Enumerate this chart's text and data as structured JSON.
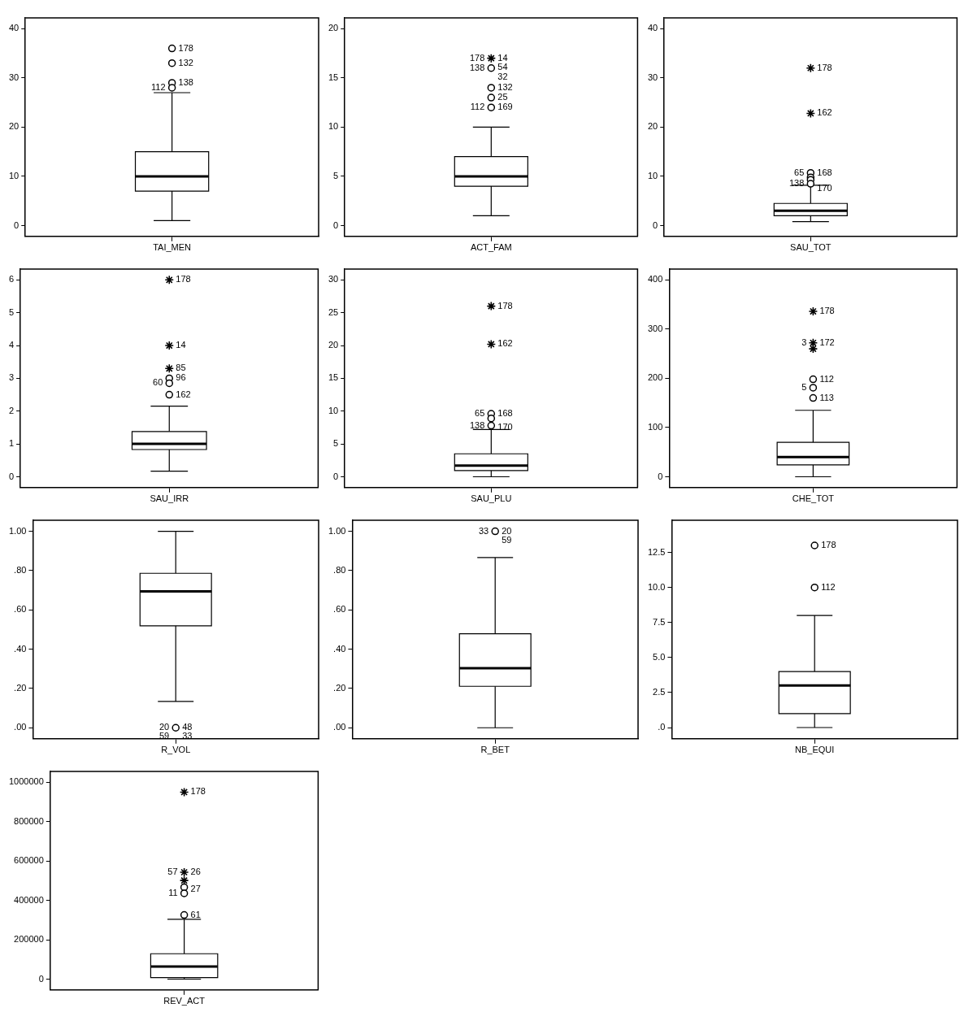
{
  "chart_data": [
    {
      "type": "box",
      "categories": [
        "TAI_MEN"
      ],
      "ylim": [
        -2.2,
        42.2
      ],
      "yticks": [
        0,
        10,
        20,
        30,
        40
      ],
      "boxes": [
        {
          "low": 1,
          "q1": 7,
          "median": 10,
          "q3": 15,
          "high": 27
        }
      ],
      "series": [
        {
          "type": "scatter",
          "marker": "circle",
          "color": "#000000",
          "x": [
            "TAI_MEN",
            "TAI_MEN",
            "TAI_MEN",
            "TAI_MEN"
          ],
          "values": [
            36,
            33,
            29,
            28
          ]
        }
      ],
      "annotations": [
        {
          "text": "178",
          "x": "TAI_MEN",
          "y": 36
        },
        {
          "text": "132",
          "x": "TAI_MEN",
          "y": 33
        },
        {
          "text": "138",
          "x": "TAI_MEN",
          "y": 29
        },
        {
          "text": "112",
          "x": "TAI_MEN",
          "y": 28
        }
      ]
    },
    {
      "type": "box",
      "categories": [
        "ACT_FAM"
      ],
      "ylim": [
        -1.1,
        21.1
      ],
      "yticks": [
        0,
        5,
        10,
        15,
        20
      ],
      "boxes": [
        {
          "low": 1,
          "q1": 4,
          "median": 5,
          "q3": 7,
          "high": 10
        }
      ],
      "series": [
        {
          "type": "scatter",
          "marker": "circle",
          "color": "#000000",
          "x": [
            "ACT_FAM",
            "ACT_FAM",
            "ACT_FAM",
            "ACT_FAM"
          ],
          "values": [
            16,
            14,
            13,
            12
          ]
        },
        {
          "type": "scatter",
          "marker": "cross",
          "color": "#000000",
          "x": [
            "ACT_FAM"
          ],
          "values": [
            17
          ]
        }
      ],
      "annotations": [
        {
          "text": "14",
          "x": "ACT_FAM",
          "y": 17
        },
        {
          "text": "178",
          "x": "ACT_FAM",
          "y": 17
        },
        {
          "text": "54",
          "x": "ACT_FAM",
          "y": 17
        },
        {
          "text": "138",
          "x": "ACT_FAM",
          "y": 16
        },
        {
          "text": "32",
          "x": "ACT_FAM",
          "y": 16
        },
        {
          "text": "132",
          "x": "ACT_FAM",
          "y": 14
        },
        {
          "text": "25",
          "x": "ACT_FAM",
          "y": 13
        },
        {
          "text": "169",
          "x": "ACT_FAM",
          "y": 12
        },
        {
          "text": "112",
          "x": "ACT_FAM",
          "y": 12
        }
      ]
    },
    {
      "type": "box",
      "categories": [
        "SAU_TOT"
      ],
      "ylim": [
        -2.2,
        42.2
      ],
      "yticks": [
        0,
        10,
        20,
        30,
        40
      ],
      "boxes": [
        {
          "low": 0.8,
          "q1": 2,
          "median": 3,
          "q3": 4.5,
          "high": 8.2
        }
      ],
      "series": [
        {
          "type": "scatter",
          "marker": "circle",
          "color": "#000000",
          "x": [
            "SAU_TOT",
            "SAU_TOT",
            "SAU_TOT",
            "SAU_TOT"
          ],
          "values": [
            10.7,
            9.8,
            9.3,
            8.5
          ]
        },
        {
          "type": "scatter",
          "marker": "cross",
          "color": "#000000",
          "x": [
            "SAU_TOT",
            "SAU_TOT"
          ],
          "values": [
            32,
            22.8
          ]
        }
      ],
      "annotations": [
        {
          "text": "178",
          "x": "SAU_TOT",
          "y": 32
        },
        {
          "text": "162",
          "x": "SAU_TOT",
          "y": 22.8
        },
        {
          "text": "168",
          "x": "SAU_TOT",
          "y": 10.7
        },
        {
          "text": "65",
          "x": "SAU_TOT",
          "y": 10.7
        },
        {
          "text": "170",
          "x": "SAU_TOT",
          "y": 9.3
        },
        {
          "text": "138",
          "x": "SAU_TOT",
          "y": 8.5
        }
      ]
    },
    {
      "type": "box",
      "categories": [
        "SAU_IRR"
      ],
      "ylim": [
        -0.33,
        6.33
      ],
      "yticks": [
        0,
        1,
        2,
        3,
        4,
        5,
        6
      ],
      "boxes": [
        {
          "low": 0.17,
          "q1": 0.83,
          "median": 1,
          "q3": 1.38,
          "high": 2.15
        }
      ],
      "series": [
        {
          "type": "scatter",
          "marker": "circle",
          "color": "#000000",
          "x": [
            "SAU_IRR",
            "SAU_IRR",
            "SAU_IRR"
          ],
          "values": [
            3,
            2.85,
            2.5
          ]
        },
        {
          "type": "scatter",
          "marker": "cross",
          "color": "#000000",
          "x": [
            "SAU_IRR",
            "SAU_IRR",
            "SAU_IRR"
          ],
          "values": [
            6,
            4,
            3.3
          ]
        }
      ],
      "annotations": [
        {
          "text": "178",
          "x": "SAU_IRR",
          "y": 6
        },
        {
          "text": "14",
          "x": "SAU_IRR",
          "y": 4
        },
        {
          "text": "85",
          "x": "SAU_IRR",
          "y": 3.3
        },
        {
          "text": "96",
          "x": "SAU_IRR",
          "y": 3
        },
        {
          "text": "60",
          "x": "SAU_IRR",
          "y": 2.85
        },
        {
          "text": "162",
          "x": "SAU_IRR",
          "y": 2.5
        }
      ]
    },
    {
      "type": "box",
      "categories": [
        "SAU_PLU"
      ],
      "ylim": [
        -1.65,
        31.65
      ],
      "yticks": [
        0,
        5,
        10,
        15,
        20,
        25,
        30
      ],
      "boxes": [
        {
          "low": 0,
          "q1": 0.95,
          "median": 1.7,
          "q3": 3.5,
          "high": 7.2
        }
      ],
      "series": [
        {
          "type": "scatter",
          "marker": "circle",
          "color": "#000000",
          "x": [
            "SAU_PLU",
            "SAU_PLU",
            "SAU_PLU"
          ],
          "values": [
            9.6,
            8.9,
            7.8
          ]
        },
        {
          "type": "scatter",
          "marker": "cross",
          "color": "#000000",
          "x": [
            "SAU_PLU",
            "SAU_PLU"
          ],
          "values": [
            26,
            20.2
          ]
        }
      ],
      "annotations": [
        {
          "text": "178",
          "x": "SAU_PLU",
          "y": 26
        },
        {
          "text": "162",
          "x": "SAU_PLU",
          "y": 20.2
        },
        {
          "text": "168",
          "x": "SAU_PLU",
          "y": 9.6
        },
        {
          "text": "65",
          "x": "SAU_PLU",
          "y": 9.6
        },
        {
          "text": "170",
          "x": "SAU_PLU",
          "y": 8.9
        },
        {
          "text": "138",
          "x": "SAU_PLU",
          "y": 7.8
        }
      ]
    },
    {
      "type": "box",
      "categories": [
        "CHE_TOT"
      ],
      "ylim": [
        -22,
        422
      ],
      "yticks": [
        0,
        100,
        200,
        300,
        400
      ],
      "boxes": [
        {
          "low": 0,
          "q1": 24,
          "median": 40,
          "q3": 70,
          "high": 135
        }
      ],
      "series": [
        {
          "type": "scatter",
          "marker": "circle",
          "color": "#000000",
          "x": [
            "CHE_TOT",
            "CHE_TOT",
            "CHE_TOT"
          ],
          "values": [
            198,
            181,
            160
          ]
        },
        {
          "type": "scatter",
          "marker": "cross",
          "color": "#000000",
          "x": [
            "CHE_TOT",
            "CHE_TOT",
            "CHE_TOT"
          ],
          "values": [
            336,
            272,
            260
          ]
        }
      ],
      "annotations": [
        {
          "text": "178",
          "x": "CHE_TOT",
          "y": 336
        },
        {
          "text": "172",
          "x": "CHE_TOT",
          "y": 272
        },
        {
          "text": "3",
          "x": "CHE_TOT",
          "y": 272
        },
        {
          "text": "112",
          "x": "CHE_TOT",
          "y": 198
        },
        {
          "text": "5",
          "x": "CHE_TOT",
          "y": 181
        },
        {
          "text": "113",
          "x": "CHE_TOT",
          "y": 160
        }
      ]
    },
    {
      "type": "box",
      "categories": [
        "R_VOL"
      ],
      "ylim": [
        -0.056,
        1.056
      ],
      "yticks": [
        {
          "value": 0,
          "label": ".00"
        },
        {
          "value": 0.2,
          "label": ".20"
        },
        {
          "value": 0.4,
          "label": ".40"
        },
        {
          "value": 0.6,
          "label": ".60"
        },
        {
          "value": 0.8,
          "label": ".80"
        },
        {
          "value": 1,
          "label": "1.00"
        }
      ],
      "boxes": [
        {
          "low": 0.134,
          "q1": 0.519,
          "median": 0.694,
          "q3": 0.786,
          "high": 1
        }
      ],
      "series": [
        {
          "type": "scatter",
          "marker": "circle",
          "color": "#000000",
          "x": [
            "R_VOL"
          ],
          "values": [
            0
          ]
        }
      ],
      "annotations": [
        {
          "text": "48",
          "x": "R_VOL",
          "y": 0
        },
        {
          "text": "20",
          "x": "R_VOL",
          "y": 0
        },
        {
          "text": "33",
          "x": "R_VOL",
          "y": 0
        },
        {
          "text": "59",
          "x": "R_VOL",
          "y": 0
        }
      ]
    },
    {
      "type": "box",
      "categories": [
        "R_BET"
      ],
      "ylim": [
        -0.056,
        1.056
      ],
      "yticks": [
        {
          "value": 0,
          "label": ".00"
        },
        {
          "value": 0.2,
          "label": ".20"
        },
        {
          "value": 0.4,
          "label": ".40"
        },
        {
          "value": 0.6,
          "label": ".60"
        },
        {
          "value": 0.8,
          "label": ".80"
        },
        {
          "value": 1,
          "label": "1.00"
        }
      ],
      "boxes": [
        {
          "low": 0,
          "q1": 0.211,
          "median": 0.303,
          "q3": 0.478,
          "high": 0.866
        }
      ],
      "series": [
        {
          "type": "scatter",
          "marker": "circle",
          "color": "#000000",
          "x": [
            "R_BET"
          ],
          "values": [
            1
          ]
        }
      ],
      "annotations": [
        {
          "text": "20",
          "x": "R_BET",
          "y": 1
        },
        {
          "text": "33",
          "x": "R_BET",
          "y": 1
        },
        {
          "text": "59",
          "x": "R_BET",
          "y": 1
        }
      ]
    },
    {
      "type": "box",
      "categories": [
        "NB_EQUI"
      ],
      "ylim": [
        -0.8,
        14.8
      ],
      "yticks": [
        {
          "value": 0,
          "label": ".0"
        },
        {
          "value": 2.5,
          "label": "2.5"
        },
        {
          "value": 5,
          "label": "5.0"
        },
        {
          "value": 7.5,
          "label": "7.5"
        },
        {
          "value": 10,
          "label": "10.0"
        },
        {
          "value": 12.5,
          "label": "12.5"
        }
      ],
      "boxes": [
        {
          "low": 0,
          "q1": 1,
          "median": 3,
          "q3": 4,
          "high": 8
        }
      ],
      "series": [
        {
          "type": "scatter",
          "marker": "circle",
          "color": "#000000",
          "x": [
            "NB_EQUI",
            "NB_EQUI"
          ],
          "values": [
            13,
            10
          ]
        }
      ],
      "annotations": [
        {
          "text": "178",
          "x": "NB_EQUI",
          "y": 13
        },
        {
          "text": "112",
          "x": "NB_EQUI",
          "y": 10
        }
      ]
    },
    {
      "type": "box",
      "categories": [
        "REV_ACT"
      ],
      "ylim": [
        -55000,
        1055000
      ],
      "yticks": [
        0,
        200000,
        400000,
        600000,
        800000,
        1000000
      ],
      "boxes": [
        {
          "low": 0,
          "q1": 8000,
          "median": 64000,
          "q3": 129000,
          "high": 304000
        }
      ],
      "series": [
        {
          "type": "scatter",
          "marker": "circle",
          "color": "#000000",
          "x": [
            "REV_ACT",
            "REV_ACT",
            "REV_ACT"
          ],
          "values": [
            467000,
            436000,
            326000
          ]
        },
        {
          "type": "scatter",
          "marker": "cross",
          "color": "#000000",
          "x": [
            "REV_ACT",
            "REV_ACT",
            "REV_ACT"
          ],
          "values": [
            950000,
            543000,
            501000
          ]
        }
      ],
      "annotations": [
        {
          "text": "178",
          "x": "REV_ACT",
          "y": 950000
        },
        {
          "text": "26",
          "x": "REV_ACT",
          "y": 543000
        },
        {
          "text": "57",
          "x": "REV_ACT",
          "y": 543000
        },
        {
          "text": "27",
          "x": "REV_ACT",
          "y": 501000
        },
        {
          "text": "11",
          "x": "REV_ACT",
          "y": 436000
        },
        {
          "text": "61",
          "x": "REV_ACT",
          "y": 326000
        }
      ]
    }
  ]
}
